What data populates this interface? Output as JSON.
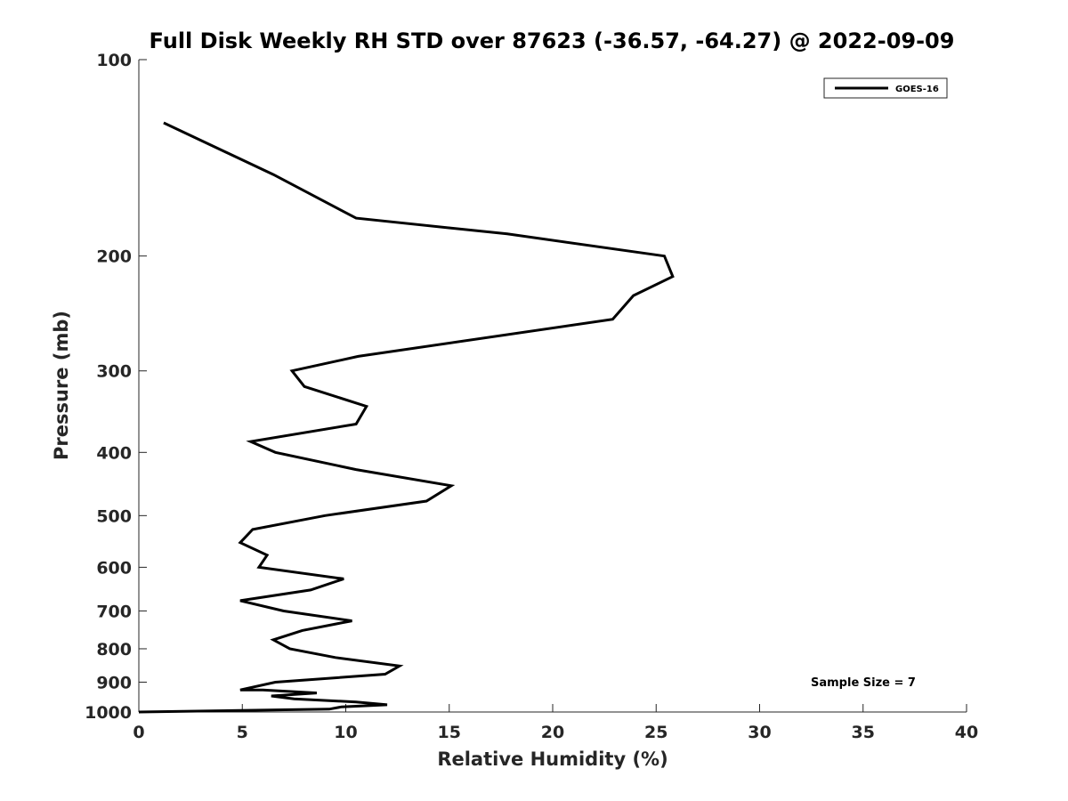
{
  "chart_data": {
    "type": "line",
    "title": "Full Disk Weekly RH STD over 87623 (-36.57, -64.27) @ 2022-09-09",
    "xlabel": "Relative Humidity (%)",
    "ylabel": "Pressure (mb)",
    "xlim": [
      0,
      40
    ],
    "ylim": [
      100,
      1000
    ],
    "y_scale": "log",
    "y_reversed": true,
    "grid": false,
    "legend_position": "top-right",
    "x_ticks": [
      0,
      5,
      10,
      15,
      20,
      25,
      30,
      35,
      40
    ],
    "y_ticks": [
      100,
      200,
      300,
      400,
      500,
      600,
      700,
      800,
      900,
      1000
    ],
    "annotation": "Sample Size = 7",
    "series": [
      {
        "name": "GOES-16",
        "color": "#000000",
        "points": [
          [
            1.2,
            125
          ],
          [
            6.5,
            150
          ],
          [
            10.5,
            175
          ],
          [
            17.8,
            185
          ],
          [
            25.4,
            200
          ],
          [
            25.8,
            215
          ],
          [
            23.9,
            230
          ],
          [
            22.9,
            250
          ],
          [
            10.6,
            285
          ],
          [
            7.4,
            300
          ],
          [
            8.0,
            317
          ],
          [
            11.0,
            340
          ],
          [
            10.5,
            362
          ],
          [
            5.4,
            385
          ],
          [
            6.6,
            400
          ],
          [
            10.5,
            425
          ],
          [
            15.1,
            450
          ],
          [
            13.9,
            475
          ],
          [
            9.0,
            500
          ],
          [
            5.5,
            525
          ],
          [
            4.9,
            550
          ],
          [
            6.2,
            575
          ],
          [
            5.8,
            600
          ],
          [
            9.9,
            625
          ],
          [
            8.3,
            650
          ],
          [
            4.9,
            675
          ],
          [
            7.0,
            700
          ],
          [
            10.3,
            725
          ],
          [
            7.9,
            750
          ],
          [
            6.5,
            775
          ],
          [
            7.3,
            800
          ],
          [
            9.5,
            825
          ],
          [
            12.6,
            850
          ],
          [
            11.9,
            875
          ],
          [
            6.6,
            900
          ],
          [
            4.9,
            925
          ],
          [
            6.0,
            925
          ],
          [
            8.6,
            935
          ],
          [
            6.4,
            945
          ],
          [
            7.5,
            955
          ],
          [
            10.5,
            965
          ],
          [
            12.0,
            975
          ],
          [
            9.8,
            982
          ],
          [
            9.2,
            990
          ],
          [
            0,
            1000
          ]
        ]
      }
    ]
  }
}
